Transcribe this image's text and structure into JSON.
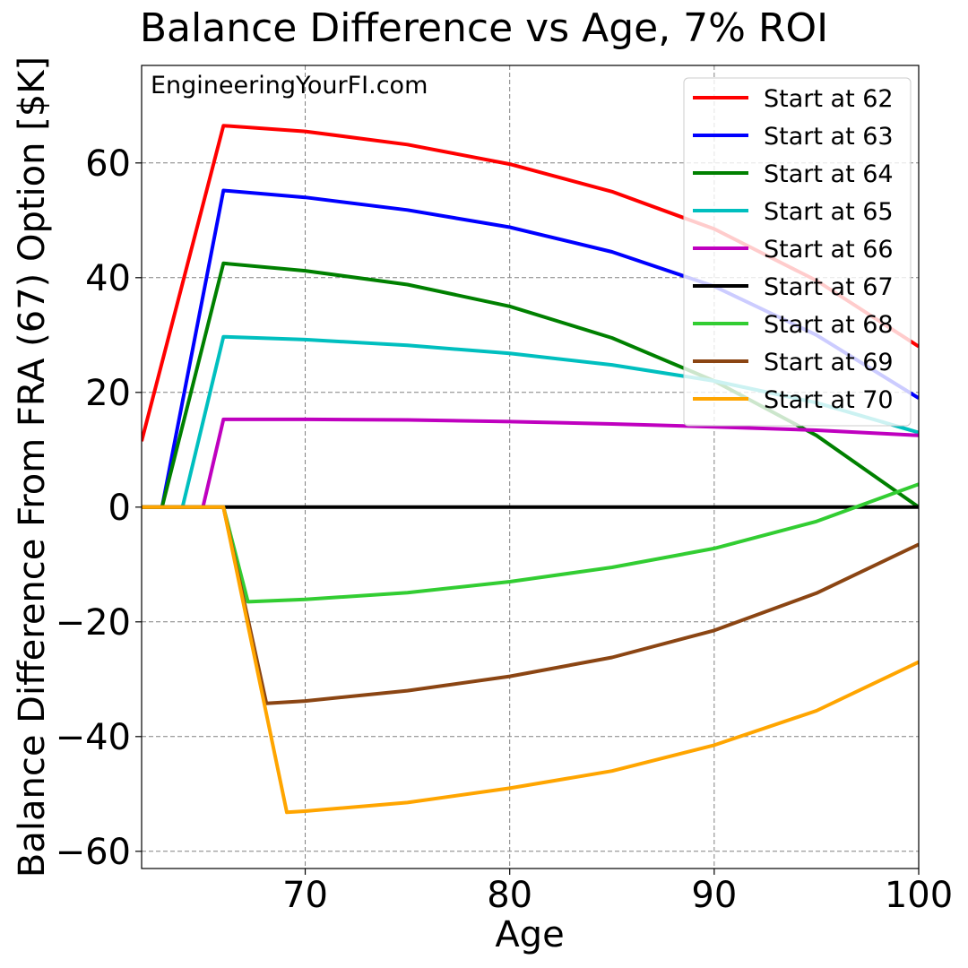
{
  "chart_data": {
    "type": "line",
    "title": "Balance Difference vs Age, 7% ROI",
    "xlabel": "Age",
    "ylabel": "Balance Difference From FRA (67) Option [$K]",
    "watermark": "EngineeringYourFI.com",
    "xlim": [
      62,
      100
    ],
    "ylim": [
      -63,
      77
    ],
    "xticks": [
      70,
      80,
      90,
      100
    ],
    "yticks": [
      -60,
      -40,
      -20,
      0,
      20,
      40,
      60
    ],
    "xtick_labels": [
      "70",
      "80",
      "90",
      "100"
    ],
    "ytick_labels": [
      "−60",
      "−40",
      "−20",
      "0",
      "20",
      "40",
      "60"
    ],
    "grid": true,
    "legend_position": "top-right",
    "series": [
      {
        "name": "Start at 62",
        "color": "#ff0000",
        "x": [
          62,
          66,
          70,
          75,
          80,
          85,
          90,
          95,
          100
        ],
        "y": [
          11.5,
          66.5,
          65.5,
          63.2,
          59.8,
          55.0,
          48.5,
          39.5,
          28.0
        ]
      },
      {
        "name": "Start at 63",
        "color": "#0000ff",
        "x": [
          62,
          63,
          66,
          70,
          75,
          80,
          85,
          90,
          95,
          100
        ],
        "y": [
          0,
          0,
          55.2,
          54.0,
          51.8,
          48.8,
          44.5,
          38.5,
          30.0,
          19.0
        ]
      },
      {
        "name": "Start at 64",
        "color": "#008000",
        "x": [
          62,
          63,
          66,
          70,
          75,
          80,
          85,
          90,
          95,
          100
        ],
        "y": [
          0,
          0,
          42.5,
          41.2,
          38.8,
          35.0,
          29.5,
          22.0,
          12.5,
          0
        ]
      },
      {
        "name": "Start at 65",
        "color": "#00bfbf",
        "x": [
          62,
          64,
          66,
          70,
          75,
          80,
          85,
          90,
          95,
          100
        ],
        "y": [
          0,
          0,
          29.7,
          29.2,
          28.2,
          26.8,
          24.8,
          22.0,
          18.2,
          13.0
        ]
      },
      {
        "name": "Start at 66",
        "color": "#bf00bf",
        "x": [
          62,
          65,
          66,
          70,
          75,
          80,
          85,
          90,
          95,
          100
        ],
        "y": [
          0,
          0,
          15.3,
          15.3,
          15.2,
          14.9,
          14.5,
          14.0,
          13.4,
          12.5
        ]
      },
      {
        "name": "Start at 67",
        "color": "#000000",
        "x": [
          62,
          100
        ],
        "y": [
          0,
          0
        ]
      },
      {
        "name": "Start at 68",
        "color": "#32cd32",
        "x": [
          62,
          66,
          67.2,
          70,
          75,
          80,
          85,
          90,
          95,
          100
        ],
        "y": [
          0,
          0,
          -16.5,
          -16.1,
          -14.9,
          -13.0,
          -10.5,
          -7.2,
          -2.5,
          4.0
        ]
      },
      {
        "name": "Start at 69",
        "color": "#8b4513",
        "x": [
          62,
          66,
          68.1,
          70,
          75,
          80,
          85,
          90,
          95,
          100
        ],
        "y": [
          0,
          0,
          -34.2,
          -33.8,
          -32.0,
          -29.5,
          -26.2,
          -21.5,
          -15.0,
          -6.5
        ]
      },
      {
        "name": "Start at 70",
        "color": "#ffa500",
        "x": [
          62,
          66,
          69.1,
          70,
          75,
          80,
          85,
          90,
          95,
          100
        ],
        "y": [
          0,
          0,
          -53.2,
          -53.0,
          -51.5,
          -49.0,
          -46.0,
          -41.5,
          -35.5,
          -27.0
        ]
      }
    ]
  }
}
